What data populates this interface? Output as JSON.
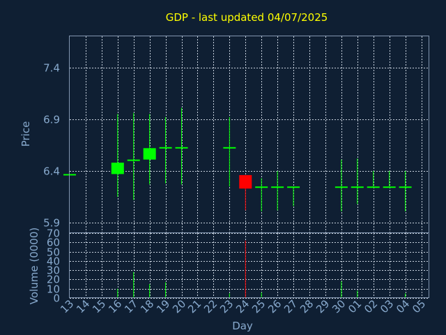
{
  "chart_data": {
    "type": "candlestick",
    "title": "GDP - last updated 04/07/2025",
    "xlabel": "Day",
    "price_panel": {
      "ylabel": "Price",
      "yticks": [
        "5.9",
        "6.4",
        "6.9",
        "7.4"
      ],
      "ylim": [
        5.8,
        7.7
      ],
      "grid": true
    },
    "volume_panel": {
      "ylabel": "Volume (0000)",
      "yticks": [
        "0",
        "10",
        "20",
        "30",
        "40",
        "50",
        "60",
        "70"
      ],
      "ylim": [
        0,
        70
      ],
      "grid": true
    },
    "x_tick_labels": [
      "13",
      "14",
      "15",
      "16",
      "17",
      "18",
      "19",
      "20",
      "21",
      "22",
      "23",
      "24",
      "25",
      "26",
      "27",
      "28",
      "29",
      "30",
      "01",
      "02",
      "03",
      "04",
      "05"
    ],
    "candles": [
      {
        "day": "13",
        "open": 6.37,
        "high": 6.37,
        "low": 6.37,
        "close": 6.37,
        "volume": 0
      },
      {
        "day": "16",
        "open": 6.37,
        "high": 6.95,
        "low": 6.15,
        "close": 6.48,
        "volume": 10
      },
      {
        "day": "17",
        "open": 6.5,
        "high": 6.96,
        "low": 6.12,
        "close": 6.51,
        "volume": 28
      },
      {
        "day": "18",
        "open": 6.51,
        "high": 6.95,
        "low": 6.27,
        "close": 6.62,
        "volume": 15
      },
      {
        "day": "19",
        "open": 6.62,
        "high": 6.92,
        "low": 6.28,
        "close": 6.63,
        "volume": 17
      },
      {
        "day": "20",
        "open": 6.62,
        "high": 7.01,
        "low": 6.27,
        "close": 6.63,
        "volume": 0
      },
      {
        "day": "23",
        "open": 6.62,
        "high": 6.92,
        "low": 6.25,
        "close": 6.63,
        "volume": 5
      },
      {
        "day": "24",
        "open": 6.36,
        "high": 6.36,
        "low": 6.02,
        "close": 6.23,
        "volume": 62
      },
      {
        "day": "25",
        "open": 6.24,
        "high": 6.33,
        "low": 6.01,
        "close": 6.25,
        "volume": 6
      },
      {
        "day": "26",
        "open": 6.24,
        "high": 6.4,
        "low": 6.02,
        "close": 6.25,
        "volume": 0
      },
      {
        "day": "27",
        "open": 6.24,
        "high": 6.25,
        "low": 6.06,
        "close": 6.25,
        "volume": 0
      },
      {
        "day": "30",
        "open": 6.24,
        "high": 6.51,
        "low": 6.01,
        "close": 6.25,
        "volume": 18
      },
      {
        "day": "01",
        "open": 6.24,
        "high": 6.52,
        "low": 6.08,
        "close": 6.25,
        "volume": 8
      },
      {
        "day": "02",
        "open": 6.24,
        "high": 6.4,
        "low": 6.25,
        "close": 6.25,
        "volume": 0
      },
      {
        "day": "03",
        "open": 6.24,
        "high": 6.4,
        "low": 6.25,
        "close": 6.25,
        "volume": 0
      },
      {
        "day": "04",
        "open": 6.24,
        "high": 6.4,
        "low": 6.01,
        "close": 6.25,
        "volume": 5
      }
    ],
    "colors": {
      "background": "#0f1f33",
      "up": "#00ff00",
      "down": "#ff0000",
      "title": "#ffff00",
      "axis_text": "#88aace",
      "grid": "#c9d3df",
      "frame": "#8296b0"
    }
  }
}
